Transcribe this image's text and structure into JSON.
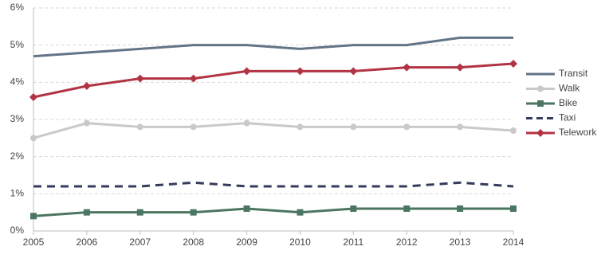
{
  "chart_data": {
    "type": "line",
    "categories": [
      "2005",
      "2006",
      "2007",
      "2008",
      "2009",
      "2010",
      "2011",
      "2012",
      "2013",
      "2014"
    ],
    "series": [
      {
        "name": "Transit",
        "color": "#627486",
        "marker": "none",
        "dash": false,
        "values": [
          4.7,
          4.8,
          4.9,
          5.0,
          5.0,
          4.9,
          5.0,
          5.0,
          5.2,
          5.2
        ]
      },
      {
        "name": "Walk",
        "color": "#c9c9c9",
        "marker": "circle",
        "dash": false,
        "values": [
          2.5,
          2.9,
          2.8,
          2.8,
          2.9,
          2.8,
          2.8,
          2.8,
          2.8,
          2.7
        ]
      },
      {
        "name": "Bike",
        "color": "#4b7662",
        "marker": "square",
        "dash": false,
        "values": [
          0.4,
          0.5,
          0.5,
          0.5,
          0.6,
          0.5,
          0.6,
          0.6,
          0.6,
          0.6
        ]
      },
      {
        "name": "Taxi",
        "color": "#353b5c",
        "marker": "none",
        "dash": true,
        "values": [
          1.2,
          1.2,
          1.2,
          1.3,
          1.2,
          1.2,
          1.2,
          1.2,
          1.3,
          1.2
        ]
      },
      {
        "name": "Telework",
        "color": "#b23444",
        "marker": "diamond",
        "dash": false,
        "values": [
          3.6,
          3.9,
          4.1,
          4.1,
          4.3,
          4.3,
          4.3,
          4.4,
          4.4,
          4.5
        ]
      }
    ],
    "ylim": [
      0,
      6
    ],
    "yticks": [
      {
        "value": 0,
        "label": "0%"
      },
      {
        "value": 1,
        "label": "1%"
      },
      {
        "value": 2,
        "label": "2%"
      },
      {
        "value": 3,
        "label": "3%"
      },
      {
        "value": 4,
        "label": "4%"
      },
      {
        "value": 5,
        "label": "5%"
      },
      {
        "value": 6,
        "label": "6%"
      }
    ],
    "grid": true,
    "legend": "right"
  }
}
